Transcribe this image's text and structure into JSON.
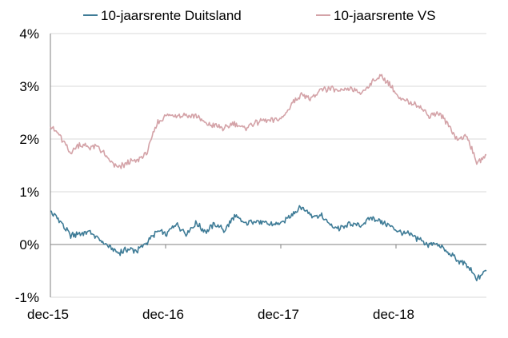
{
  "chart_data": {
    "type": "line",
    "title": "",
    "xlabel": "",
    "ylabel": "",
    "grid": true,
    "legend_position": "top",
    "x_ticks": [
      "dec-15",
      "dec-16",
      "dec-17",
      "dec-18"
    ],
    "y_ticks": [
      "4%",
      "3%",
      "2%",
      "1%",
      "0%",
      "-1%"
    ],
    "xlim": [
      "2015-12",
      "2019-09"
    ],
    "ylim": [
      -1,
      4
    ],
    "colors": {
      "duitsland": "#3F7C97",
      "vs": "#D4A3A8",
      "grid": "#D9D9D9",
      "axis": "#808080"
    },
    "series": [
      {
        "name": "10-jaarsrente Duitsland",
        "key": "duitsland",
        "points": [
          [
            "2015-12",
            0.63
          ],
          [
            "2016-01",
            0.45
          ],
          [
            "2016-02",
            0.18
          ],
          [
            "2016-03",
            0.2
          ],
          [
            "2016-04",
            0.25
          ],
          [
            "2016-05",
            0.1
          ],
          [
            "2016-06",
            -0.05
          ],
          [
            "2016-07",
            -0.15
          ],
          [
            "2016-08",
            -0.1
          ],
          [
            "2016-09",
            -0.12
          ],
          [
            "2016-10",
            0.05
          ],
          [
            "2016-11",
            0.25
          ],
          [
            "2016-12",
            0.2
          ],
          [
            "2017-01",
            0.4
          ],
          [
            "2017-02",
            0.2
          ],
          [
            "2017-03",
            0.4
          ],
          [
            "2017-04",
            0.25
          ],
          [
            "2017-05",
            0.4
          ],
          [
            "2017-06",
            0.25
          ],
          [
            "2017-07",
            0.55
          ],
          [
            "2017-08",
            0.4
          ],
          [
            "2017-09",
            0.45
          ],
          [
            "2017-10",
            0.4
          ],
          [
            "2017-11",
            0.38
          ],
          [
            "2017-12",
            0.42
          ],
          [
            "2018-01",
            0.6
          ],
          [
            "2018-02",
            0.7
          ],
          [
            "2018-03",
            0.55
          ],
          [
            "2018-04",
            0.55
          ],
          [
            "2018-05",
            0.35
          ],
          [
            "2018-06",
            0.3
          ],
          [
            "2018-07",
            0.4
          ],
          [
            "2018-08",
            0.35
          ],
          [
            "2018-09",
            0.5
          ],
          [
            "2018-10",
            0.45
          ],
          [
            "2018-11",
            0.35
          ],
          [
            "2018-12",
            0.25
          ],
          [
            "2019-01",
            0.2
          ],
          [
            "2019-02",
            0.1
          ],
          [
            "2019-03",
            0.0
          ],
          [
            "2019-04",
            0.0
          ],
          [
            "2019-05",
            -0.15
          ],
          [
            "2019-06",
            -0.3
          ],
          [
            "2019-07",
            -0.4
          ],
          [
            "2019-08",
            -0.65
          ],
          [
            "2019-09",
            -0.5
          ]
        ]
      },
      {
        "name": "10-jaarsrente VS",
        "key": "vs",
        "points": [
          [
            "2015-12",
            2.25
          ],
          [
            "2016-01",
            2.05
          ],
          [
            "2016-02",
            1.75
          ],
          [
            "2016-03",
            1.9
          ],
          [
            "2016-04",
            1.85
          ],
          [
            "2016-05",
            1.85
          ],
          [
            "2016-06",
            1.6
          ],
          [
            "2016-07",
            1.45
          ],
          [
            "2016-08",
            1.55
          ],
          [
            "2016-09",
            1.6
          ],
          [
            "2016-10",
            1.75
          ],
          [
            "2016-11",
            2.3
          ],
          [
            "2016-12",
            2.45
          ],
          [
            "2017-01",
            2.45
          ],
          [
            "2017-02",
            2.45
          ],
          [
            "2017-03",
            2.45
          ],
          [
            "2017-04",
            2.3
          ],
          [
            "2017-05",
            2.25
          ],
          [
            "2017-06",
            2.2
          ],
          [
            "2017-07",
            2.3
          ],
          [
            "2017-08",
            2.2
          ],
          [
            "2017-09",
            2.3
          ],
          [
            "2017-10",
            2.35
          ],
          [
            "2017-11",
            2.35
          ],
          [
            "2017-12",
            2.4
          ],
          [
            "2018-01",
            2.7
          ],
          [
            "2018-02",
            2.85
          ],
          [
            "2018-03",
            2.75
          ],
          [
            "2018-04",
            2.95
          ],
          [
            "2018-05",
            2.95
          ],
          [
            "2018-06",
            2.9
          ],
          [
            "2018-07",
            2.95
          ],
          [
            "2018-08",
            2.85
          ],
          [
            "2018-09",
            3.05
          ],
          [
            "2018-10",
            3.2
          ],
          [
            "2018-11",
            3.05
          ],
          [
            "2018-12",
            2.75
          ],
          [
            "2019-01",
            2.7
          ],
          [
            "2019-02",
            2.65
          ],
          [
            "2019-03",
            2.45
          ],
          [
            "2019-04",
            2.5
          ],
          [
            "2019-05",
            2.3
          ],
          [
            "2019-06",
            2.0
          ],
          [
            "2019-07",
            2.05
          ],
          [
            "2019-08",
            1.55
          ],
          [
            "2019-09",
            1.7
          ]
        ]
      }
    ]
  }
}
